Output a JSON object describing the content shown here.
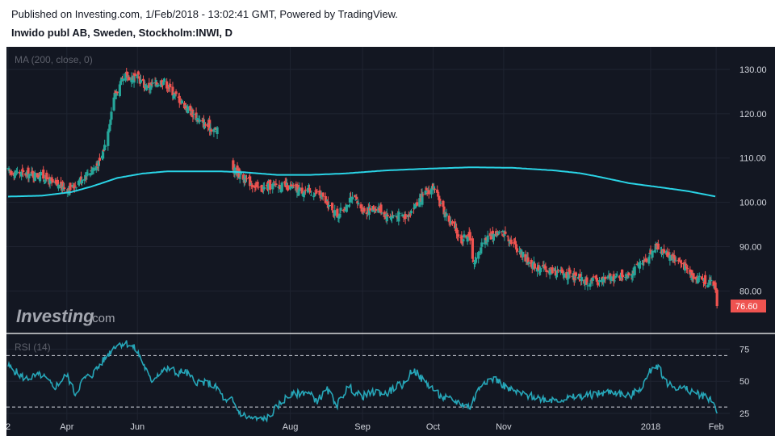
{
  "header": {
    "published": "Published on Investing.com, 1/Feb/2018 - 13:02:41 GMT, Powered by TradingView.",
    "symbol": "Inwido publ AB, Sweden, Stockholm:INWI, D"
  },
  "logo": {
    "main": "Investing",
    "suffix": ".com"
  },
  "colors": {
    "background": "#131722",
    "up": "#26a69a",
    "down": "#ef5350",
    "ma_line": "#2ad4e6",
    "rsi_line": "#26a6b8",
    "price_label": "#ef5350"
  },
  "chart_data": [
    {
      "type": "candlestick",
      "legend": "MA (200, close, 0)",
      "y_ticks": [
        "130.00",
        "120.00",
        "110.00",
        "100.00",
        "90.00",
        "80.00"
      ],
      "y_tick_values": [
        130,
        120,
        110,
        100,
        90,
        80
      ],
      "ylim": [
        71.5,
        134
      ],
      "x_ticks": [
        "2",
        "Apr",
        "Jun",
        "Aug",
        "Sep",
        "Oct",
        "Nov",
        "2018",
        "Feb"
      ],
      "x_tick_days": [
        0,
        70,
        154,
        336,
        422,
        506,
        590,
        765,
        843
      ],
      "last_price": "76.60",
      "last_price_value": 76.6,
      "close_anchors": [
        [
          0,
          107
        ],
        [
          18,
          106.5
        ],
        [
          40,
          106
        ],
        [
          55,
          104
        ],
        [
          75,
          103
        ],
        [
          85,
          105
        ],
        [
          100,
          107.5
        ],
        [
          110,
          109
        ],
        [
          118,
          115
        ],
        [
          126,
          124
        ],
        [
          140,
          128.5
        ],
        [
          155,
          128
        ],
        [
          165,
          126
        ],
        [
          185,
          127.5
        ],
        [
          200,
          124
        ],
        [
          230,
          118
        ],
        [
          250,
          116
        ],
        [
          262,
          113.5
        ],
        [
          268,
          107.5
        ],
        [
          284,
          105
        ],
        [
          300,
          103
        ],
        [
          320,
          104
        ],
        [
          342,
          103
        ],
        [
          370,
          102
        ],
        [
          392,
          97
        ],
        [
          410,
          101
        ],
        [
          425,
          98
        ],
        [
          440,
          99
        ],
        [
          450,
          97
        ],
        [
          475,
          97
        ],
        [
          492,
          101
        ],
        [
          506,
          103.5
        ],
        [
          516,
          99
        ],
        [
          528,
          95
        ],
        [
          540,
          91.5
        ],
        [
          548,
          93
        ],
        [
          555,
          86
        ],
        [
          566,
          91.5
        ],
        [
          582,
          93
        ],
        [
          592,
          93
        ],
        [
          605,
          90
        ],
        [
          620,
          86.5
        ],
        [
          635,
          85
        ],
        [
          660,
          84
        ],
        [
          690,
          82
        ],
        [
          720,
          83
        ],
        [
          740,
          84
        ],
        [
          755,
          86
        ],
        [
          770,
          90
        ],
        [
          780,
          89
        ],
        [
          800,
          86.5
        ],
        [
          815,
          83.5
        ],
        [
          835,
          82
        ],
        [
          842,
          81
        ],
        [
          846,
          76.6
        ]
      ],
      "ma_anchors": [
        [
          0,
          101.3
        ],
        [
          40,
          101.5
        ],
        [
          75,
          102.3
        ],
        [
          100,
          103.6
        ],
        [
          130,
          105.5
        ],
        [
          160,
          106.5
        ],
        [
          190,
          107
        ],
        [
          250,
          107
        ],
        [
          280,
          106.8
        ],
        [
          320,
          106.2
        ],
        [
          360,
          106.2
        ],
        [
          400,
          106.5
        ],
        [
          450,
          107.2
        ],
        [
          500,
          107.6
        ],
        [
          550,
          107.9
        ],
        [
          600,
          107.8
        ],
        [
          650,
          107.2
        ],
        [
          680,
          106.6
        ],
        [
          700,
          105.9
        ],
        [
          740,
          104.3
        ],
        [
          780,
          103.3
        ],
        [
          810,
          102.5
        ],
        [
          843,
          101.3
        ]
      ],
      "gap": [
        250,
        268
      ]
    },
    {
      "type": "line",
      "legend": "RSI (14)",
      "y_ticks": [
        "75",
        "50",
        "25"
      ],
      "y_tick_values": [
        75,
        50,
        25
      ],
      "ylim": [
        20,
        84
      ],
      "levels": [
        70,
        30
      ],
      "anchors": [
        [
          0,
          62
        ],
        [
          20,
          52
        ],
        [
          40,
          55
        ],
        [
          55,
          45
        ],
        [
          70,
          55
        ],
        [
          80,
          40
        ],
        [
          90,
          52
        ],
        [
          100,
          55
        ],
        [
          118,
          70
        ],
        [
          128,
          78
        ],
        [
          140,
          80
        ],
        [
          152,
          75
        ],
        [
          158,
          68
        ],
        [
          170,
          50
        ],
        [
          182,
          58
        ],
        [
          195,
          60
        ],
        [
          200,
          56
        ],
        [
          210,
          58
        ],
        [
          222,
          50
        ],
        [
          240,
          48
        ],
        [
          250,
          44
        ],
        [
          260,
          33
        ],
        [
          266,
          36
        ],
        [
          275,
          26
        ],
        [
          285,
          22
        ],
        [
          300,
          20
        ],
        [
          310,
          22
        ],
        [
          320,
          30
        ],
        [
          332,
          38
        ],
        [
          342,
          40
        ],
        [
          355,
          42
        ],
        [
          368,
          35
        ],
        [
          380,
          43
        ],
        [
          392,
          32
        ],
        [
          405,
          46
        ],
        [
          420,
          38
        ],
        [
          438,
          42
        ],
        [
          450,
          40
        ],
        [
          462,
          46
        ],
        [
          472,
          48
        ],
        [
          482,
          60
        ],
        [
          492,
          52
        ],
        [
          503,
          46
        ],
        [
          515,
          38
        ],
        [
          530,
          35
        ],
        [
          550,
          30
        ],
        [
          565,
          50
        ],
        [
          580,
          52
        ],
        [
          595,
          44
        ],
        [
          610,
          40
        ],
        [
          625,
          38
        ],
        [
          640,
          36
        ],
        [
          660,
          36
        ],
        [
          680,
          38
        ],
        [
          700,
          40
        ],
        [
          720,
          42
        ],
        [
          740,
          38
        ],
        [
          755,
          46
        ],
        [
          768,
          62
        ],
        [
          775,
          62
        ],
        [
          782,
          50
        ],
        [
          790,
          46
        ],
        [
          800,
          45
        ],
        [
          815,
          42
        ],
        [
          830,
          38
        ],
        [
          838,
          36
        ],
        [
          845,
          25
        ]
      ]
    }
  ]
}
